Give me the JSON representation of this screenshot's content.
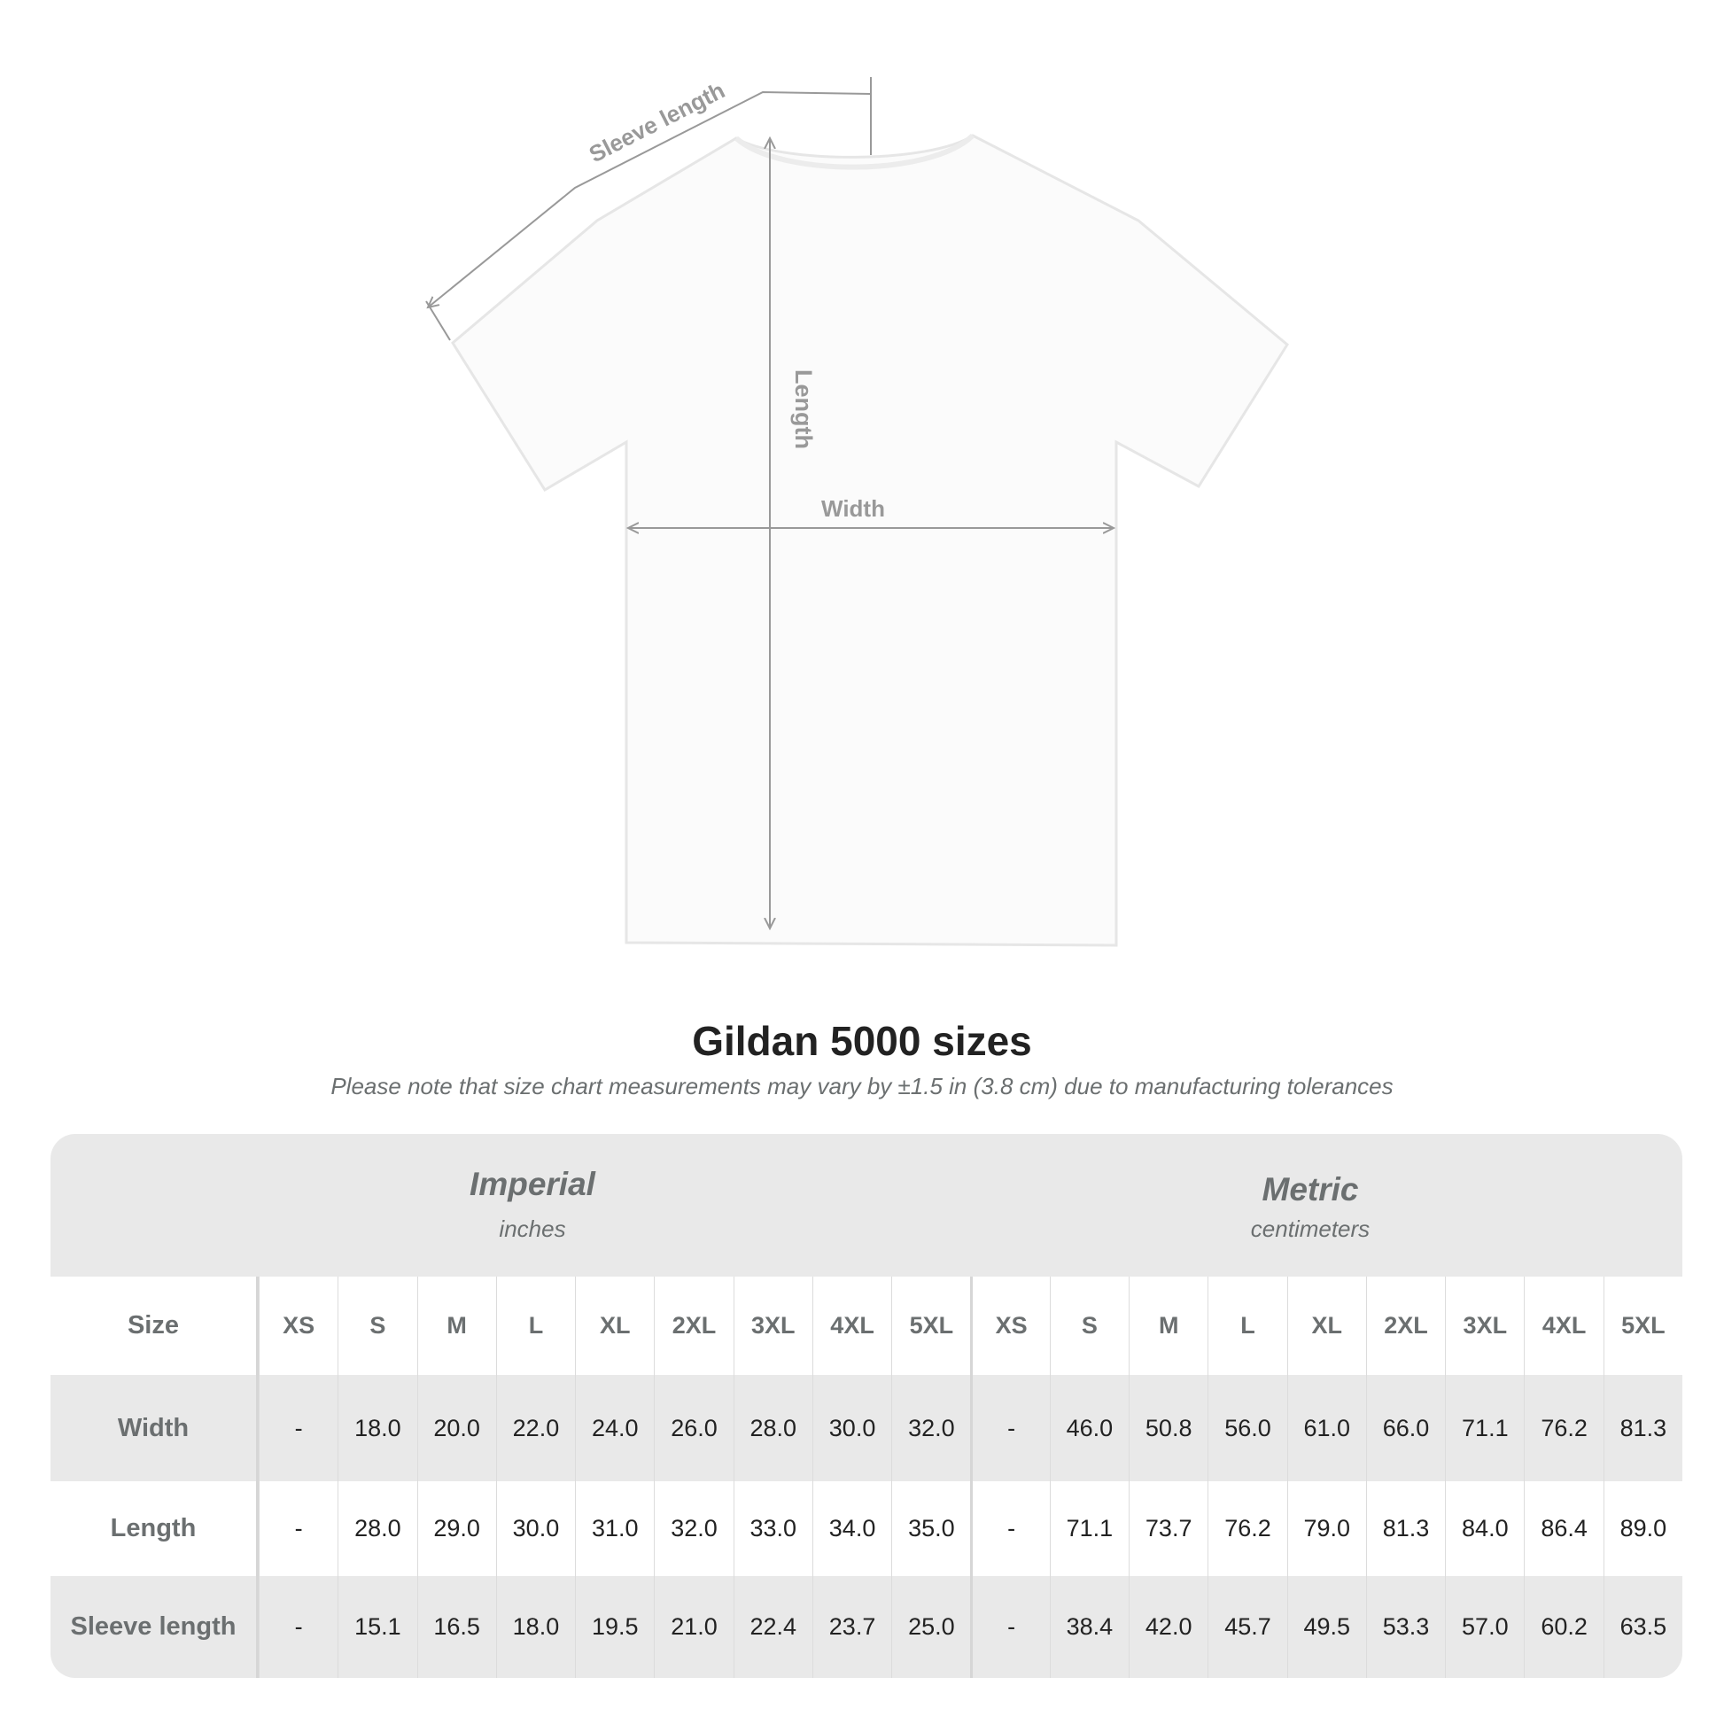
{
  "diagram": {
    "labels": {
      "sleeve": "Sleeve length",
      "length": "Length",
      "width": "Width"
    }
  },
  "title": "Gildan 5000 sizes",
  "subtitle": "Please note that size chart measurements may vary by ±1.5 in (3.8 cm) due to manufacturing tolerances",
  "table": {
    "imperial": {
      "name": "Imperial",
      "unit": "inches"
    },
    "metric": {
      "name": "Metric",
      "unit": "centimeters"
    },
    "size_label": "Size",
    "sizes": [
      "XS",
      "S",
      "M",
      "L",
      "XL",
      "2XL",
      "3XL",
      "4XL",
      "5XL"
    ],
    "rows": [
      {
        "label": "Width",
        "imperial": [
          "-",
          "18.0",
          "20.0",
          "22.0",
          "24.0",
          "26.0",
          "28.0",
          "30.0",
          "32.0"
        ],
        "metric": [
          "-",
          "46.0",
          "50.8",
          "56.0",
          "61.0",
          "66.0",
          "71.1",
          "76.2",
          "81.3"
        ]
      },
      {
        "label": "Length",
        "imperial": [
          "-",
          "28.0",
          "29.0",
          "30.0",
          "31.0",
          "32.0",
          "33.0",
          "34.0",
          "35.0"
        ],
        "metric": [
          "-",
          "71.1",
          "73.7",
          "76.2",
          "79.0",
          "81.3",
          "84.0",
          "86.4",
          "89.0"
        ]
      },
      {
        "label": "Sleeve length",
        "imperial": [
          "-",
          "15.1",
          "16.5",
          "18.0",
          "19.5",
          "21.0",
          "22.4",
          "23.7",
          "25.0"
        ],
        "metric": [
          "-",
          "38.4",
          "42.0",
          "45.7",
          "49.5",
          "53.3",
          "57.0",
          "60.2",
          "63.5"
        ]
      }
    ]
  },
  "colors": {
    "band": "#e9e9e9",
    "label": "#6b6f70",
    "value": "#222222",
    "measure": "#999999"
  }
}
